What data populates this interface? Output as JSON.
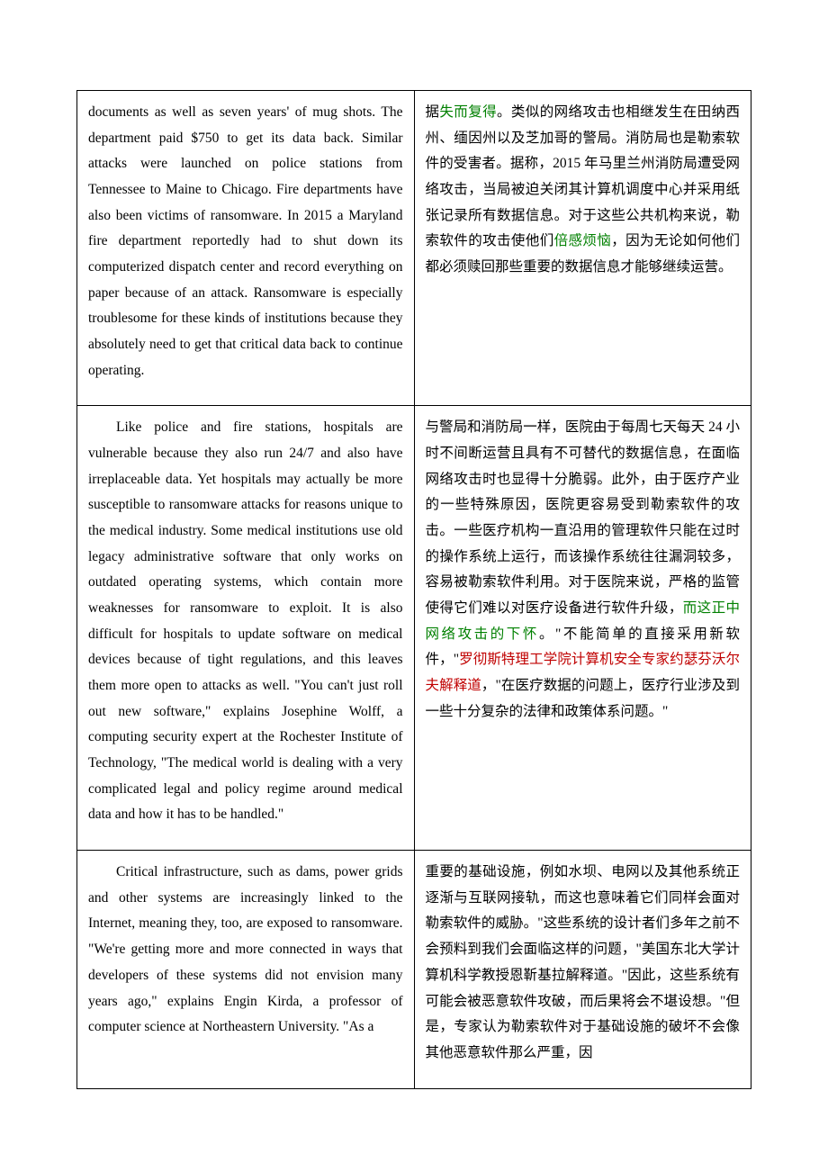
{
  "colors": {
    "text": "#000000",
    "green": "#008000",
    "red": "#c00000",
    "border": "#000000",
    "background": "#ffffff"
  },
  "rows": [
    {
      "en": {
        "pre": "documents as well as seven years' of mug shots. The department paid $750 to get its data back. Similar attacks were launched on police stations from Tennessee to Maine to Chicago. Fire departments have also been victims of ransomware. In 2015 a Maryland fire department reportedly had to shut down its computerized dispatch center and record everything on paper because of an attack. Ransomware is especially troublesome for these kinds of institutions because they absolutely need to get that critical data back to continue operating."
      },
      "zh": {
        "pre": "据",
        "g1": "失而复得",
        "mid1": "。类似的网络攻击也相继发生在田纳西州、缅因州以及芝加哥的警局。消防局也是勒索软件的受害者。据称，2015 年马里兰州消防局遭受网络攻击，当局被迫关闭其计算机调度中心并采用纸张记录所有数据信息。对于这些公共机构来说，勒索软件的攻击使他们",
        "g2": "倍感烦恼",
        "post": "，因为无论如何他们都必须赎回那些重要的数据信息才能够继续运营。"
      }
    },
    {
      "en": {
        "pre": "Like police and fire stations, hospitals are vulnerable because they also run 24/7 and also have irreplaceable data. Yet hospitals may actually be more susceptible to ransomware attacks for reasons unique to the medical industry. Some medical institutions use old legacy administrative software that only works on outdated operating systems, which contain more weaknesses for ransomware to exploit. It is also difficult for hospitals to update software on medical devices because of tight regulations, and this leaves them more open to attacks as well. \"You can't just roll out new software,\" explains Josephine Wolff, a computing security expert at the Rochester Institute of Technology, \"The medical world is dealing with a very complicated legal and policy regime around medical data and how it has to be handled.\""
      },
      "zh": {
        "pre": "与警局和消防局一样，医院由于每周七天每天 24 小时不间断运营且具有不可替代的数据信息，在面临网络攻击时也显得十分脆弱。此外，由于医疗产业的一些特殊原因，医院更容易受到勒索软件的攻击。一些医疗机构一直沿用的管理软件只能在过时的操作系统上运行，而该操作系统往往漏洞较多，容易被勒索软件利用。对于医院来说，严格的监管使得它们难以对医疗设备进行软件升级，",
        "g1": "而这正中网络攻击的下怀",
        "mid1": "。\"不能简单的直接采用新软件，\"",
        "r1": "罗彻斯特理工学院计算机安全专家约瑟芬沃尔夫解释道",
        "post": "，\"在医疗数据的问题上，医疗行业涉及到一些十分复杂的法律和政策体系问题。\""
      }
    },
    {
      "en": {
        "pre": "Critical infrastructure, such as dams, power grids and other systems are increasingly linked to the Internet, meaning they, too, are exposed to ransomware. \"We're getting more and more connected in ways that developers of these systems did not envision many years ago,\" explains Engin Kirda, a professor of computer science at Northeastern University. \"As a"
      },
      "zh": {
        "pre": "重要的基础设施，例如水坝、电网以及其他系统正逐渐与互联网接轨，而这也意味着它们同样会面对勒索软件的威胁。\"这些系统的设计者们多年之前不会预料到我们会面临这样的问题，\"美国东北大学计算机科学教授恩靳基拉解释道。\"因此，这些系统有可能会被恶意软件攻破，而后果将会不堪设想。\"但是，专家认为勒索软件对于基础设施的破坏不会像其他恶意软件那么严重，因"
      }
    }
  ]
}
